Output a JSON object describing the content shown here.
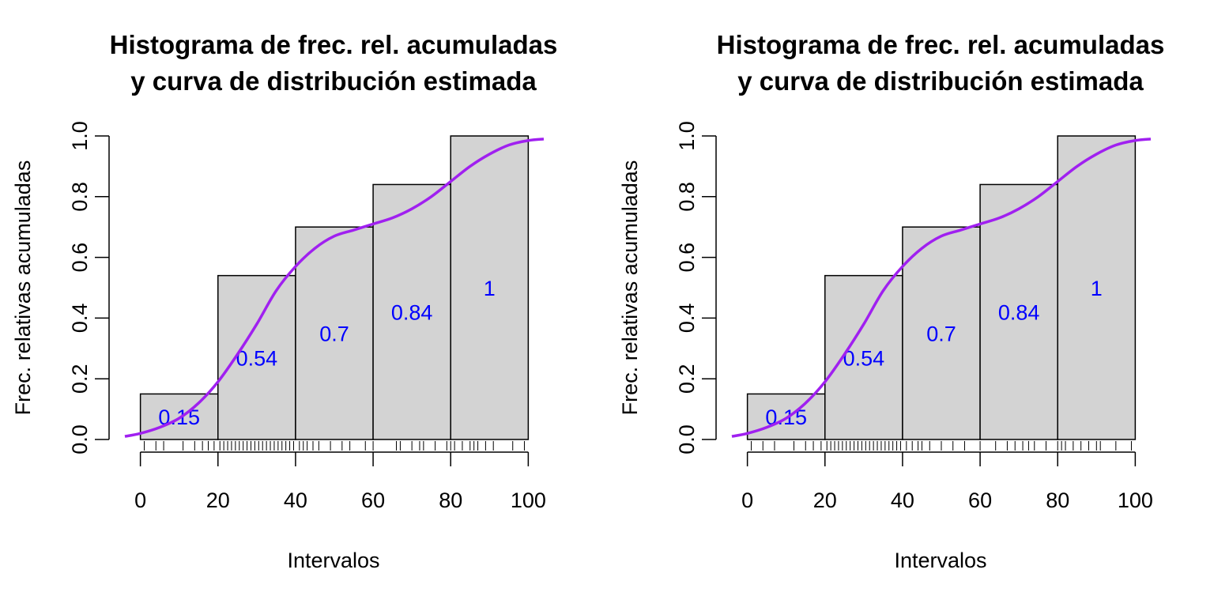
{
  "chart_data": [
    {
      "type": "bar",
      "title": [
        "Histograma de frec. rel. acumuladas",
        "y curva de distribución estimada"
      ],
      "xlabel": "Intervalos",
      "ylabel": "Frec. relativas acumuladas",
      "bins": [
        [
          0,
          20
        ],
        [
          20,
          40
        ],
        [
          40,
          60
        ],
        [
          60,
          80
        ],
        [
          80,
          100
        ]
      ],
      "values": [
        0.15,
        0.54,
        0.7,
        0.84,
        1
      ],
      "bar_labels": [
        "0.15",
        "0.54",
        "0.7",
        "0.84",
        "1"
      ],
      "xticks": [
        0,
        20,
        40,
        60,
        80,
        100
      ],
      "yticks": [
        0.0,
        0.2,
        0.4,
        0.6,
        0.8,
        1.0
      ],
      "xlim": [
        -4,
        104
      ],
      "ylim": [
        0,
        1
      ],
      "grid": false,
      "colors": {
        "bar_fill": "#d3d3d3",
        "bar_edge": "#000000",
        "label": "#0000ff",
        "curve": "#a020f0"
      },
      "curve": {
        "name": "curva de distribución estimada",
        "x": [
          -4,
          0,
          5,
          10,
          15,
          20,
          25,
          30,
          35,
          40,
          45,
          50,
          55,
          60,
          65,
          70,
          75,
          80,
          85,
          90,
          95,
          100,
          104
        ],
        "y": [
          0.01,
          0.02,
          0.04,
          0.07,
          0.12,
          0.19,
          0.28,
          0.38,
          0.49,
          0.57,
          0.63,
          0.67,
          0.69,
          0.71,
          0.73,
          0.76,
          0.8,
          0.85,
          0.9,
          0.94,
          0.97,
          0.985,
          0.99
        ]
      },
      "rug": [
        1,
        4,
        6,
        11,
        14,
        16,
        17.5,
        19,
        20.5,
        21.5,
        22.5,
        23.5,
        24.5,
        25.5,
        26.5,
        27.5,
        28.5,
        29.5,
        30.5,
        31.5,
        32.5,
        33.5,
        34.5,
        35.5,
        36.5,
        37.5,
        38.5,
        39.5,
        41,
        42,
        43,
        44.5,
        46,
        49,
        52,
        54,
        58,
        60,
        66,
        67,
        70,
        72,
        73,
        76,
        79,
        80,
        81,
        83,
        85,
        86,
        87,
        89,
        91,
        96,
        99
      ]
    },
    {
      "type": "bar",
      "title": [
        "Histograma de frec. rel. acumuladas",
        "y curva de distribución estimada"
      ],
      "xlabel": "Intervalos",
      "ylabel": "Frec. relativas acumuladas",
      "bins": [
        [
          0,
          20
        ],
        [
          20,
          40
        ],
        [
          40,
          60
        ],
        [
          60,
          80
        ],
        [
          80,
          100
        ]
      ],
      "values": [
        0.15,
        0.54,
        0.7,
        0.84,
        1
      ],
      "bar_labels": [
        "0.15",
        "0.54",
        "0.7",
        "0.84",
        "1"
      ],
      "xticks": [
        0,
        20,
        40,
        60,
        80,
        100
      ],
      "yticks": [
        0.0,
        0.2,
        0.4,
        0.6,
        0.8,
        1.0
      ],
      "xlim": [
        -4,
        104
      ],
      "ylim": [
        0,
        1
      ],
      "grid": false,
      "colors": {
        "bar_fill": "#d3d3d3",
        "bar_edge": "#000000",
        "label": "#0000ff",
        "curve": "#a020f0"
      },
      "curve": {
        "name": "curva de distribución estimada",
        "x": [
          -4,
          0,
          5,
          10,
          15,
          20,
          25,
          30,
          35,
          40,
          45,
          50,
          55,
          60,
          65,
          70,
          75,
          80,
          85,
          90,
          95,
          100,
          104
        ],
        "y": [
          0.01,
          0.02,
          0.04,
          0.07,
          0.12,
          0.19,
          0.28,
          0.38,
          0.49,
          0.57,
          0.63,
          0.67,
          0.69,
          0.71,
          0.73,
          0.76,
          0.8,
          0.85,
          0.9,
          0.94,
          0.97,
          0.985,
          0.99
        ]
      },
      "rug": [
        1,
        4,
        7,
        12,
        15,
        17,
        19,
        20.5,
        21.5,
        22.5,
        23.5,
        24.5,
        25.5,
        26.5,
        27.5,
        28.5,
        29.5,
        30.5,
        31.5,
        32.5,
        33.5,
        34.5,
        35.5,
        36.5,
        37.5,
        38.5,
        39.5,
        41,
        42.5,
        44,
        45,
        47,
        50,
        53,
        56,
        60,
        64,
        67,
        69,
        71,
        72.5,
        74,
        77,
        80,
        81,
        82,
        84,
        86,
        88,
        90,
        91,
        95,
        99
      ]
    }
  ]
}
